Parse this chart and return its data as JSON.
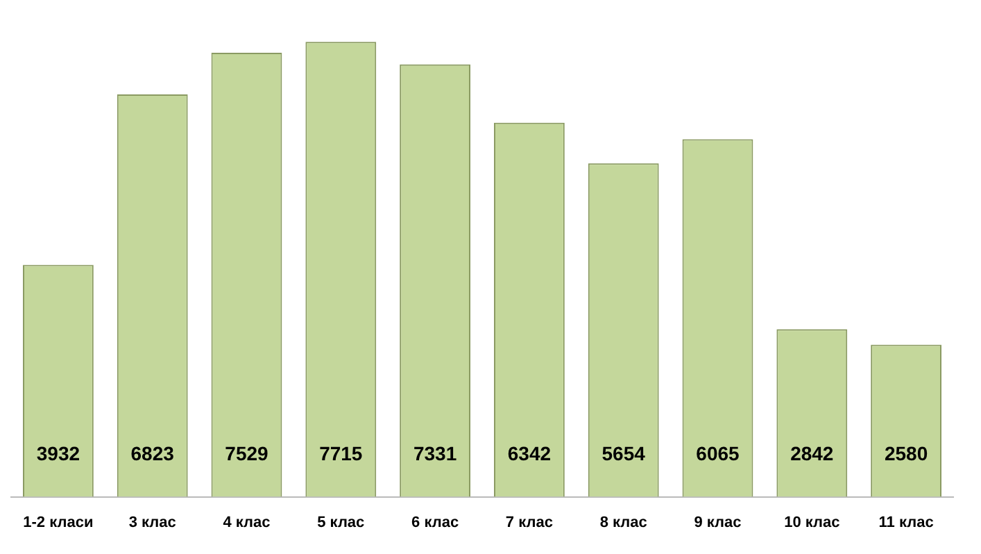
{
  "chart_data": {
    "type": "bar",
    "categories": [
      "1-2 класи",
      "3 клас",
      "4 клас",
      "5 клас",
      "6 клас",
      "7 клас",
      "8 клас",
      "9 клас",
      "10 клас",
      "11 клас"
    ],
    "values": [
      3932,
      6823,
      7529,
      7715,
      7331,
      6342,
      5654,
      6065,
      2842,
      2580
    ],
    "color": "#c4d79b",
    "data_labels": true,
    "grid": false,
    "legend": false
  }
}
